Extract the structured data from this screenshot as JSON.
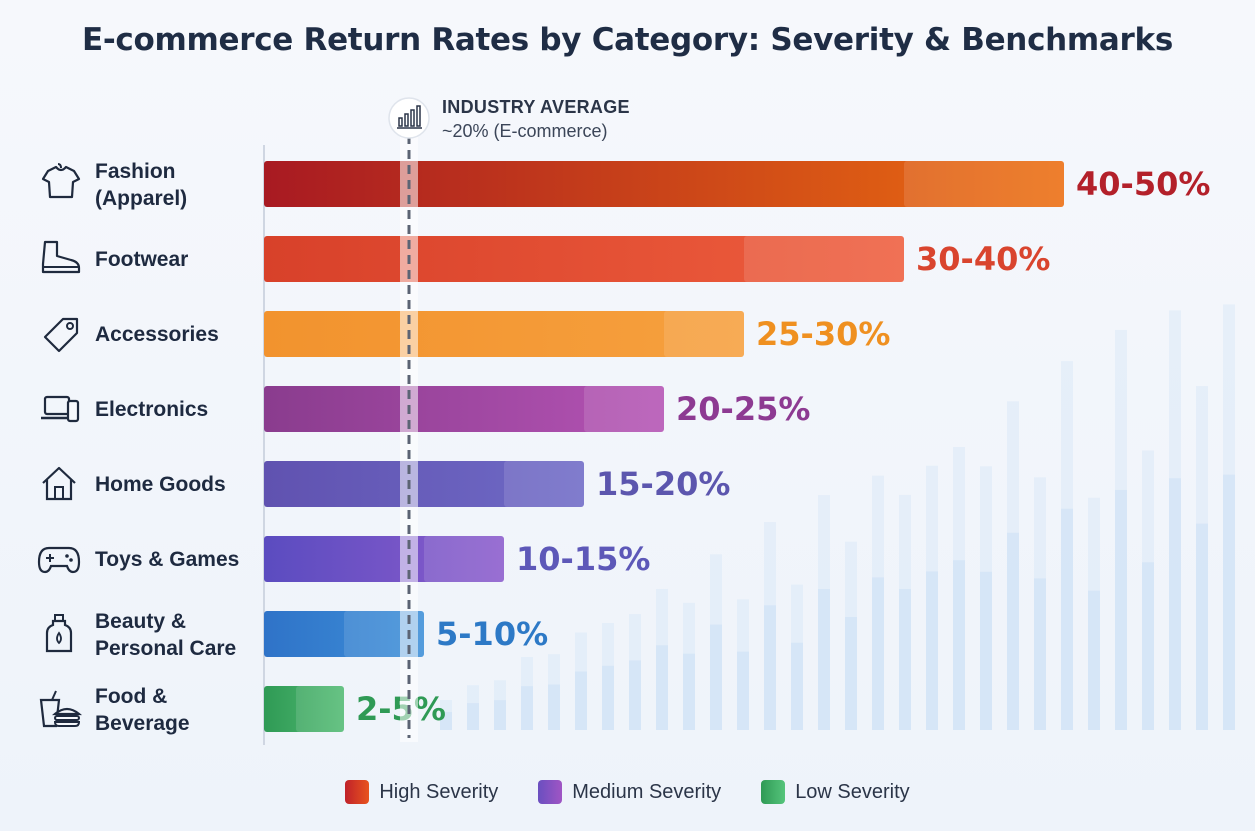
{
  "chart_data": {
    "type": "bar",
    "orientation": "horizontal",
    "title": "E-commerce Return Rates by Category: Severity & Benchmarks",
    "unit": "%",
    "xlim": [
      0,
      55
    ],
    "categories": [
      {
        "name": "Fashion (Apparel)",
        "lines": [
          "Fashion",
          "(Apparel)"
        ],
        "icon": "shirt-icon",
        "low": 40,
        "high": 50,
        "label": "40-50%",
        "severity": "high",
        "color_start": "#a81a22",
        "color_end": "#ec6e10",
        "label_color": "#b3202a"
      },
      {
        "name": "Footwear",
        "lines": [
          "Footwear"
        ],
        "icon": "boot-icon",
        "low": 30,
        "high": 40,
        "label": "30-40%",
        "severity": "high",
        "color_start": "#d8412a",
        "color_end": "#ee5e3e",
        "label_color": "#d9442e"
      },
      {
        "name": "Accessories",
        "lines": [
          "Accessories"
        ],
        "icon": "tag-icon",
        "low": 25,
        "high": 30,
        "label": "25-30%",
        "severity": "high",
        "color_start": "#f2932e",
        "color_end": "#f6a03e",
        "label_color": "#ef9020"
      },
      {
        "name": "Electronics",
        "lines": [
          "Electronics"
        ],
        "icon": "laptop-phone-icon",
        "low": 20,
        "high": 25,
        "label": "20-25%",
        "severity": "medium",
        "color_start": "#8a3c8e",
        "color_end": "#b453b4",
        "label_color": "#8d3a92"
      },
      {
        "name": "Home Goods",
        "lines": [
          "Home Goods"
        ],
        "icon": "house-icon",
        "low": 15,
        "high": 20,
        "label": "15-20%",
        "severity": "medium",
        "color_start": "#6052b0",
        "color_end": "#6f6ac6",
        "label_color": "#5c56ae"
      },
      {
        "name": "Toys & Games",
        "lines": [
          "Toys & Games"
        ],
        "icon": "gamepad-icon",
        "low": 10,
        "high": 15,
        "label": "10-15%",
        "severity": "medium",
        "color_start": "#5b4cc0",
        "color_end": "#8b5ccc",
        "label_color": "#5d58b8"
      },
      {
        "name": "Beauty & Personal Care",
        "lines": [
          "Beauty &",
          "Personal Care"
        ],
        "icon": "bottle-icon",
        "low": 5,
        "high": 10,
        "label": "5-10%",
        "severity": "low",
        "color_start": "#2f73c8",
        "color_end": "#3d8fd8",
        "label_color": "#2d79c6"
      },
      {
        "name": "Food & Beverage",
        "lines": [
          "Food &",
          "Beverage"
        ],
        "icon": "drink-burger-icon",
        "low": 2,
        "high": 5,
        "label": "2-5%",
        "severity": "low",
        "color_start": "#2f9a55",
        "color_end": "#52bb73",
        "label_color": "#2f9a55"
      }
    ],
    "benchmark": {
      "value": 20,
      "title": "INDUSTRY AVERAGE",
      "subtitle": "~20% (E-commerce)",
      "icon": "bar-chart-icon"
    },
    "legend": [
      {
        "label": "High Severity",
        "color_start": "#c0222a",
        "color_end": "#e8531e"
      },
      {
        "label": "Medium Severity",
        "color_start": "#6a4fc0",
        "color_end": "#a055c4"
      },
      {
        "label": "Low Severity",
        "color_start": "#2f9a55",
        "color_end": "#55c47b"
      }
    ]
  }
}
